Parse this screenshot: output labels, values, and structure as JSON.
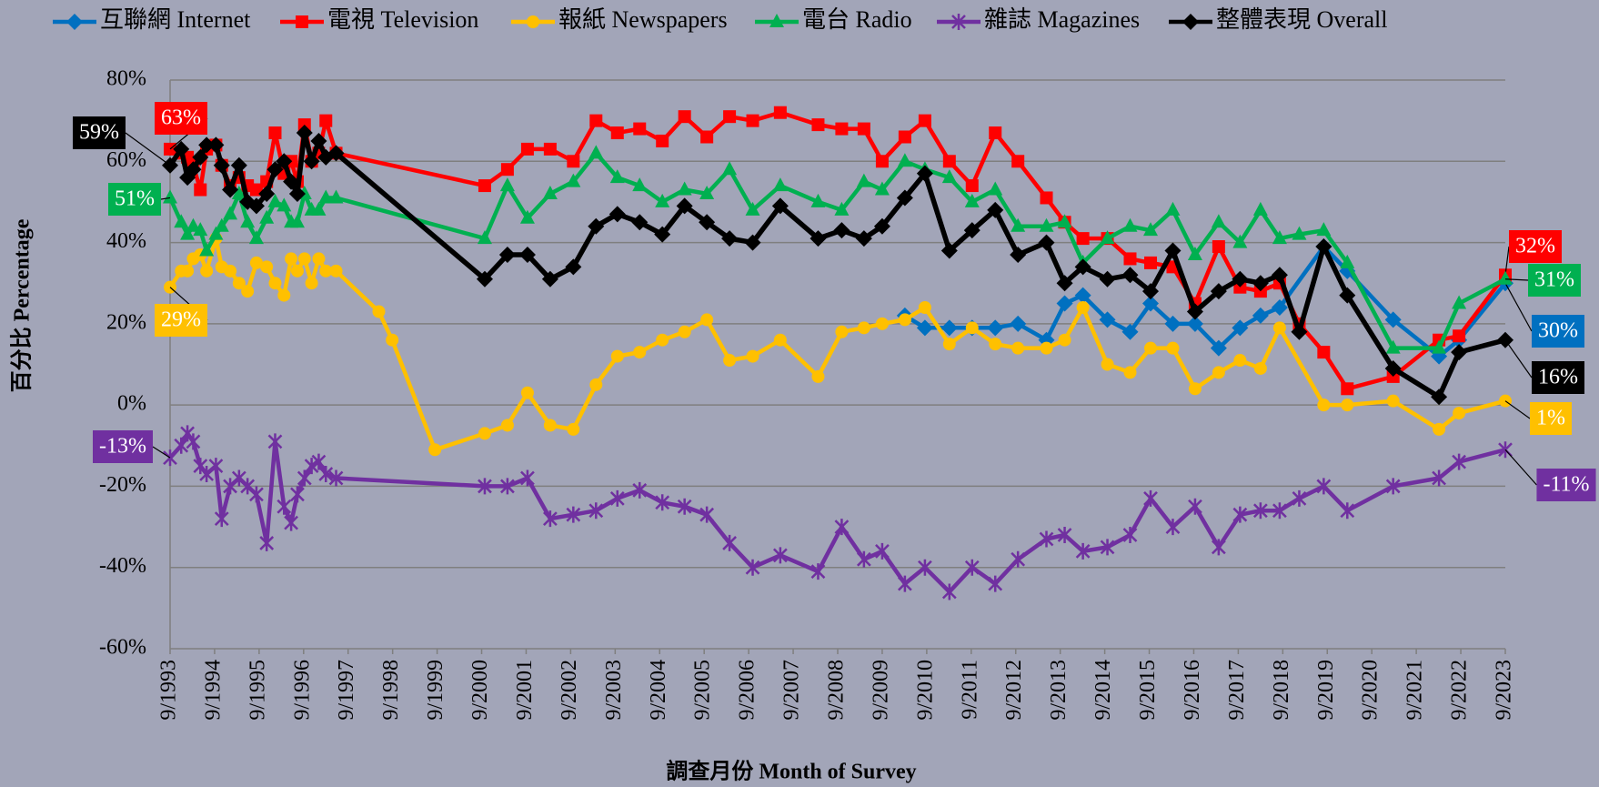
{
  "chart_data": {
    "type": "line",
    "y_axis_label": "百分比 Percentage",
    "x_axis_label": "調查月份 Month of Survey",
    "xlim": [
      1993.67,
      2023.67
    ],
    "xticks": [
      {
        "value": 1993.67,
        "label": "9/1993"
      },
      {
        "value": 1994.67,
        "label": "9/1994"
      },
      {
        "value": 1995.67,
        "label": "9/1995"
      },
      {
        "value": 1996.67,
        "label": "9/1996"
      },
      {
        "value": 1997.67,
        "label": "9/1997"
      },
      {
        "value": 1998.67,
        "label": "9/1998"
      },
      {
        "value": 1999.67,
        "label": "9/1999"
      },
      {
        "value": 2000.67,
        "label": "9/2000"
      },
      {
        "value": 2001.67,
        "label": "9/2001"
      },
      {
        "value": 2002.67,
        "label": "9/2002"
      },
      {
        "value": 2003.67,
        "label": "9/2003"
      },
      {
        "value": 2004.67,
        "label": "9/2004"
      },
      {
        "value": 2005.67,
        "label": "9/2005"
      },
      {
        "value": 2006.67,
        "label": "9/2006"
      },
      {
        "value": 2007.67,
        "label": "9/2007"
      },
      {
        "value": 2008.67,
        "label": "9/2008"
      },
      {
        "value": 2009.67,
        "label": "9/2009"
      },
      {
        "value": 2010.67,
        "label": "9/2010"
      },
      {
        "value": 2011.67,
        "label": "9/2011"
      },
      {
        "value": 2012.67,
        "label": "9/2012"
      },
      {
        "value": 2013.67,
        "label": "9/2013"
      },
      {
        "value": 2014.67,
        "label": "9/2014"
      },
      {
        "value": 2015.67,
        "label": "9/2015"
      },
      {
        "value": 2016.67,
        "label": "9/2016"
      },
      {
        "value": 2017.67,
        "label": "9/2017"
      },
      {
        "value": 2018.67,
        "label": "9/2018"
      },
      {
        "value": 2019.67,
        "label": "9/2019"
      },
      {
        "value": 2020.67,
        "label": "9/2020"
      },
      {
        "value": 2021.67,
        "label": "9/2021"
      },
      {
        "value": 2022.67,
        "label": "9/2022"
      },
      {
        "value": 2023.67,
        "label": "9/2023"
      }
    ],
    "ylim": [
      -60,
      80
    ],
    "yticks": [
      {
        "value": -60,
        "label": "-60%"
      },
      {
        "value": -40,
        "label": "-40%"
      },
      {
        "value": -20,
        "label": "-20%"
      },
      {
        "value": 0,
        "label": "0%"
      },
      {
        "value": 20,
        "label": "20%"
      },
      {
        "value": 40,
        "label": "40%"
      },
      {
        "value": 60,
        "label": "60%"
      },
      {
        "value": 80,
        "label": "80%"
      }
    ],
    "grid": true,
    "legend": "top",
    "x": [
      1993.67,
      1993.92,
      1994.06,
      1994.19,
      1994.35,
      1994.49,
      1994.7,
      1994.83,
      1995.02,
      1995.22,
      1995.41,
      1995.61,
      1995.84,
      1996.03,
      1996.23,
      1996.39,
      1996.53,
      1996.69,
      1996.85,
      1997.01,
      1997.17,
      1997.4,
      2000.74,
      2001.25,
      2001.7,
      2002.21,
      2002.73,
      2003.24,
      2003.72,
      2004.22,
      2004.73,
      2005.23,
      2005.73,
      2006.24,
      2006.76,
      2007.38,
      2008.23,
      2008.76,
      2009.26,
      2009.67,
      2010.18,
      2010.63,
      2011.18,
      2011.69,
      2012.21,
      2012.72,
      2013.36,
      2013.77,
      2014.18,
      2014.73,
      2015.24,
      2015.7,
      2016.2,
      2016.7,
      2017.23,
      2017.71,
      2018.17,
      2018.6,
      2019.04,
      2019.59,
      2020.12,
      2021.15,
      2022.18,
      2022.63,
      2023.67
    ],
    "series": [
      {
        "name": "互聯網 Internet",
        "color": "#0070c0",
        "marker": "diamond",
        "x": [
          2010.18,
          2010.63,
          2011.18,
          2011.69,
          2012.21,
          2012.72,
          2013.36,
          2013.77,
          2014.18,
          2014.73,
          2015.24,
          2015.7,
          2016.2,
          2016.7,
          2017.23,
          2017.71,
          2018.17,
          2018.6,
          2019.59,
          2020.12,
          2021.15,
          2022.18,
          2022.63,
          2023.67
        ],
        "values": [
          22,
          19,
          19,
          19,
          19,
          20,
          16,
          25,
          27,
          21,
          18,
          25,
          20,
          20,
          14,
          19,
          22,
          24,
          39,
          33,
          21,
          12,
          16,
          30
        ],
        "value_labels": [
          null,
          null,
          null,
          null,
          null,
          null,
          null,
          null,
          null,
          null,
          null,
          null,
          null,
          null,
          null,
          null,
          null,
          null,
          null,
          null,
          null,
          null,
          null,
          "30%"
        ]
      },
      {
        "name": "電視 Television",
        "color": "#ff0000",
        "marker": "square",
        "values": [
          63,
          62,
          61,
          59,
          53,
          63,
          64,
          59,
          54,
          56,
          54,
          53,
          55,
          67,
          57,
          60,
          55,
          69,
          60,
          62,
          70,
          62,
          54,
          58,
          63,
          63,
          60,
          70,
          67,
          68,
          65,
          71,
          66,
          71,
          70,
          72,
          69,
          68,
          68,
          60,
          66,
          70,
          60,
          54,
          67,
          60,
          51,
          45,
          41,
          41,
          36,
          35,
          34,
          25,
          39,
          29,
          28,
          30,
          20,
          13,
          4,
          7,
          16,
          17,
          32
        ],
        "value_labels": [
          "63%",
          null,
          null,
          null,
          null,
          null,
          null,
          null,
          null,
          null,
          null,
          null,
          null,
          null,
          null,
          null,
          null,
          null,
          null,
          null,
          null,
          null,
          null,
          null,
          null,
          null,
          null,
          null,
          null,
          null,
          null,
          null,
          null,
          null,
          null,
          null,
          null,
          null,
          null,
          null,
          null,
          null,
          null,
          null,
          null,
          null,
          null,
          null,
          null,
          null,
          null,
          null,
          null,
          null,
          null,
          null,
          null,
          null,
          null,
          null,
          null,
          null,
          null,
          null,
          "32%"
        ]
      },
      {
        "name": "報紙 Newspapers",
        "color": "#ffc000",
        "marker": "circle",
        "x": [
          1993.67,
          1993.92,
          1994.06,
          1994.19,
          1994.35,
          1994.49,
          1994.7,
          1994.83,
          1995.02,
          1995.22,
          1995.41,
          1995.61,
          1995.84,
          1996.03,
          1996.23,
          1996.39,
          1996.53,
          1996.69,
          1996.85,
          1997.01,
          1997.17,
          1997.4,
          1998.36,
          1998.66,
          1999.62,
          2000.74,
          2001.25,
          2001.7,
          2002.21,
          2002.73,
          2003.24,
          2003.72,
          2004.22,
          2004.73,
          2005.23,
          2005.73,
          2006.24,
          2006.76,
          2007.38,
          2008.23,
          2008.76,
          2009.26,
          2009.67,
          2010.18,
          2010.63,
          2011.18,
          2011.69,
          2012.21,
          2012.72,
          2013.36,
          2013.77,
          2014.18,
          2014.73,
          2015.24,
          2015.7,
          2016.2,
          2016.7,
          2017.23,
          2017.71,
          2018.17,
          2018.6,
          2019.59,
          2020.12,
          2021.15,
          2022.18,
          2022.63,
          2023.67
        ],
        "values": [
          29,
          33,
          33,
          36,
          37,
          33,
          41,
          34,
          33,
          30,
          28,
          35,
          34,
          30,
          27,
          36,
          33,
          36,
          30,
          36,
          33,
          33,
          23,
          16,
          -11,
          -7,
          -5,
          3,
          -5,
          -6,
          5,
          12,
          13,
          16,
          18,
          21,
          11,
          12,
          16,
          7,
          18,
          19,
          20,
          21,
          24,
          15,
          19,
          15,
          14,
          14,
          16,
          24,
          10,
          8,
          14,
          14,
          4,
          8,
          11,
          9,
          19,
          0,
          0,
          1,
          -6,
          -2,
          1
        ],
        "value_labels": [
          "29%",
          null,
          null,
          null,
          null,
          null,
          null,
          null,
          null,
          null,
          null,
          null,
          null,
          null,
          null,
          null,
          null,
          null,
          null,
          null,
          null,
          null,
          null,
          null,
          null,
          null,
          null,
          null,
          null,
          null,
          null,
          null,
          null,
          null,
          null,
          null,
          null,
          null,
          null,
          null,
          null,
          null,
          null,
          null,
          null,
          null,
          null,
          null,
          null,
          null,
          null,
          null,
          null,
          null,
          null,
          null,
          null,
          null,
          null,
          null,
          null,
          null,
          null,
          null,
          null,
          null,
          "1%"
        ]
      },
      {
        "name": "電台 Radio",
        "color": "#00b050",
        "marker": "triangle",
        "values": [
          51,
          45,
          42,
          44,
          43,
          38,
          42,
          44,
          47,
          52,
          45,
          41,
          46,
          50,
          49,
          45,
          45,
          52,
          48,
          48,
          51,
          51,
          41,
          54,
          46,
          52,
          55,
          62,
          56,
          54,
          50,
          53,
          52,
          58,
          48,
          54,
          50,
          48,
          55,
          53,
          60,
          58,
          56,
          50,
          53,
          44,
          44,
          45,
          35,
          41,
          44,
          43,
          48,
          37,
          45,
          40,
          48,
          41,
          42,
          43,
          35,
          14,
          14,
          25,
          31
        ],
        "value_labels": [
          "51%",
          null,
          null,
          null,
          null,
          null,
          null,
          null,
          null,
          null,
          null,
          null,
          null,
          null,
          null,
          null,
          null,
          null,
          null,
          null,
          null,
          null,
          null,
          null,
          null,
          null,
          null,
          null,
          null,
          null,
          null,
          null,
          null,
          null,
          null,
          null,
          null,
          null,
          null,
          null,
          null,
          null,
          null,
          null,
          null,
          null,
          null,
          null,
          null,
          null,
          null,
          null,
          null,
          null,
          null,
          null,
          null,
          null,
          null,
          null,
          null,
          null,
          null,
          null,
          "31%"
        ]
      },
      {
        "name": "雜誌 Magazines",
        "color": "#7030a0",
        "marker": "star",
        "values": [
          -13,
          -10,
          -7,
          -9,
          -15,
          -17,
          -15,
          -28,
          -20,
          -18,
          -20,
          -22,
          -34,
          -9,
          -25,
          -29,
          -22,
          -18,
          -15,
          -14,
          -17,
          -18,
          -20,
          -20,
          -18,
          -28,
          -27,
          -26,
          -23,
          -21,
          -24,
          -25,
          -27,
          -34,
          -40,
          -37,
          -41,
          -30,
          -38,
          -36,
          -44,
          -40,
          -46,
          -40,
          -44,
          -38,
          -33,
          -32,
          -36,
          -35,
          -32,
          -23,
          -30,
          -25,
          -35,
          -27,
          -26,
          -26,
          -23,
          -20,
          -26,
          -20,
          -18,
          -14,
          -11
        ],
        "value_labels": [
          "-13%",
          null,
          null,
          null,
          null,
          null,
          null,
          null,
          null,
          null,
          null,
          null,
          null,
          null,
          null,
          null,
          null,
          null,
          null,
          null,
          null,
          null,
          null,
          null,
          null,
          null,
          null,
          null,
          null,
          null,
          null,
          null,
          null,
          null,
          null,
          null,
          null,
          null,
          null,
          null,
          null,
          null,
          null,
          null,
          null,
          null,
          null,
          null,
          null,
          null,
          null,
          null,
          null,
          null,
          null,
          null,
          null,
          null,
          null,
          null,
          null,
          null,
          null,
          null,
          "-11%"
        ]
      },
      {
        "name": "整體表現 Overall",
        "color": "#000000",
        "marker": "diamond",
        "values": [
          59,
          63,
          56,
          58,
          61,
          64,
          64,
          59,
          53,
          59,
          50,
          49,
          52,
          58,
          60,
          55,
          52,
          67,
          60,
          65,
          61,
          62,
          31,
          37,
          37,
          31,
          34,
          44,
          47,
          45,
          42,
          49,
          45,
          41,
          40,
          49,
          41,
          43,
          41,
          44,
          51,
          57,
          38,
          43,
          48,
          37,
          40,
          30,
          34,
          31,
          32,
          28,
          38,
          23,
          28,
          31,
          30,
          32,
          18,
          39,
          27,
          9,
          2,
          13,
          16
        ],
        "value_labels": [
          "59%",
          null,
          null,
          null,
          null,
          null,
          null,
          null,
          null,
          null,
          null,
          null,
          null,
          null,
          null,
          null,
          null,
          null,
          null,
          null,
          null,
          null,
          null,
          null,
          null,
          null,
          null,
          null,
          null,
          null,
          null,
          null,
          null,
          null,
          null,
          null,
          null,
          null,
          null,
          null,
          null,
          null,
          null,
          null,
          null,
          null,
          null,
          null,
          null,
          null,
          null,
          null,
          null,
          null,
          null,
          null,
          null,
          null,
          null,
          null,
          null,
          null,
          null,
          null,
          "16%"
        ]
      }
    ]
  }
}
